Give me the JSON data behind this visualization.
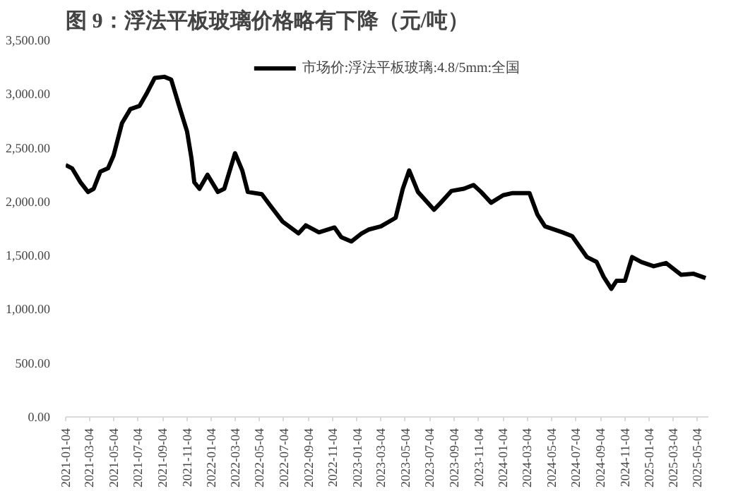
{
  "chart_data": {
    "type": "line",
    "title": "图 9：浮法平板玻璃价格略有下降（元/吨）",
    "x": [
      "2021-01-04",
      "2021-01-20",
      "2021-02-10",
      "2021-03-01",
      "2021-03-15",
      "2021-04-01",
      "2021-04-20",
      "2021-05-04",
      "2021-05-25",
      "2021-06-15",
      "2021-07-08",
      "2021-07-25",
      "2021-08-15",
      "2021-09-08",
      "2021-09-25",
      "2021-10-15",
      "2021-11-04",
      "2021-11-15",
      "2021-11-22",
      "2021-12-05",
      "2021-12-25",
      "2022-01-20",
      "2022-02-05",
      "2022-03-04",
      "2022-03-22",
      "2022-04-05",
      "2022-05-10",
      "2022-06-01",
      "2022-07-01",
      "2022-08-10",
      "2022-08-28",
      "2022-09-30",
      "2022-11-08",
      "2022-11-25",
      "2022-12-20",
      "2023-01-15",
      "2023-02-01",
      "2023-03-04",
      "2023-04-10",
      "2023-04-28",
      "2023-05-14",
      "2023-06-05",
      "2023-07-15",
      "2023-08-01",
      "2023-08-28",
      "2023-09-28",
      "2023-10-22",
      "2023-11-10",
      "2023-12-05",
      "2024-01-04",
      "2024-01-28",
      "2024-03-10",
      "2024-03-30",
      "2024-04-18",
      "2024-06-01",
      "2024-06-25",
      "2024-08-01",
      "2024-08-25",
      "2024-09-12",
      "2024-10-01",
      "2024-10-14",
      "2024-11-04",
      "2024-11-22",
      "2024-12-15",
      "2025-01-15",
      "2025-02-15",
      "2025-03-25",
      "2025-04-25",
      "2025-05-25"
    ],
    "series": [
      {
        "name": "市场价:浮法平板玻璃:4.8/5mm:全国",
        "color": "#000000",
        "values": [
          2340,
          2310,
          2180,
          2090,
          2120,
          2280,
          2310,
          2430,
          2730,
          2860,
          2890,
          3000,
          3150,
          3160,
          3135,
          2890,
          2650,
          2400,
          2180,
          2120,
          2250,
          2090,
          2120,
          2450,
          2290,
          2090,
          2070,
          1960,
          1815,
          1705,
          1780,
          1715,
          1760,
          1670,
          1630,
          1705,
          1740,
          1770,
          1850,
          2120,
          2290,
          2090,
          1925,
          1990,
          2100,
          2120,
          2155,
          2090,
          1990,
          2060,
          2080,
          2080,
          1880,
          1770,
          1715,
          1680,
          1485,
          1440,
          1300,
          1190,
          1265,
          1265,
          1485,
          1440,
          1400,
          1430,
          1320,
          1330,
          1290
        ]
      }
    ],
    "xlim": [
      "2021-01-04",
      "2025-06-01"
    ],
    "xticks": [
      "2021-01-04",
      "2021-03-04",
      "2021-05-04",
      "2021-07-04",
      "2021-09-04",
      "2021-11-04",
      "2022-01-04",
      "2022-03-04",
      "2022-05-04",
      "2022-07-04",
      "2022-09-04",
      "2022-11-04",
      "2023-01-04",
      "2023-03-04",
      "2023-05-04",
      "2023-07-04",
      "2023-09-04",
      "2023-11-04",
      "2024-01-04",
      "2024-03-04",
      "2024-05-04",
      "2024-07-04",
      "2024-09-04",
      "2024-11-04",
      "2025-01-04",
      "2025-03-04",
      "2025-05-04"
    ],
    "ylim": [
      0,
      3500
    ],
    "yticks": [
      {
        "value": 0,
        "label": "0.00"
      },
      {
        "value": 500,
        "label": "500.00"
      },
      {
        "value": 1000,
        "label": "1,000.00"
      },
      {
        "value": 1500,
        "label": "1,500.00"
      },
      {
        "value": 2000,
        "label": "2,000.00"
      },
      {
        "value": 2500,
        "label": "2,500.00"
      },
      {
        "value": 3000,
        "label": "3,000.00"
      },
      {
        "value": 3500,
        "label": "3,500.00"
      }
    ],
    "grid": false,
    "legend": "top",
    "marker": "none",
    "line_style": "solid"
  }
}
